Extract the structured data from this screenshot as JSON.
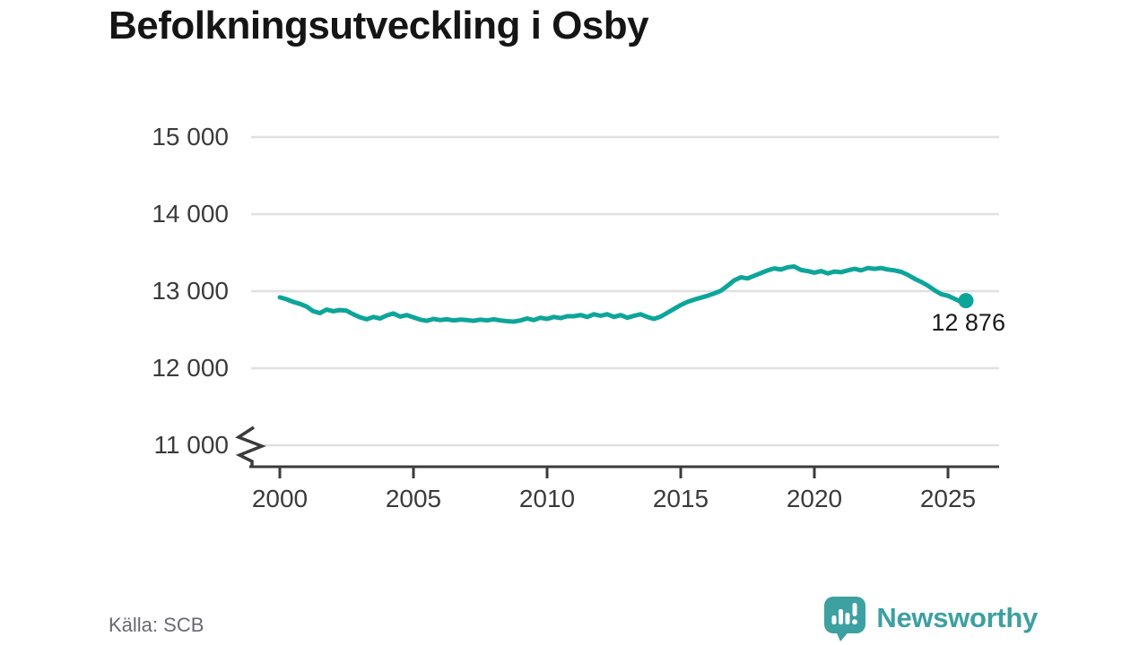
{
  "title": "Befolkningsutveckling i Osby",
  "source": "Källa: SCB",
  "branding": {
    "wordmark": "Newsworthy"
  },
  "colors": {
    "line": "#0da59a",
    "grid": "#e0e0e0",
    "axis": "#3b3b3b",
    "tick_label": "#3b3b3b",
    "title": "#151515",
    "annotation": "#1a1a1a",
    "source_text": "#696971",
    "brand_teal": "#3da0a1"
  },
  "chart_data": {
    "type": "line",
    "title": "Befolkningsutveckling i Osby",
    "xlabel": "",
    "ylabel": "",
    "grid": true,
    "legend": "none",
    "ylim": [
      11000,
      15000
    ],
    "xlim": [
      1998.7,
      2026.9
    ],
    "axis_break_at": 11000,
    "yticks": {
      "values": [
        15000,
        14000,
        13000,
        12000,
        11000
      ],
      "labels": [
        "15 000",
        "14 000",
        "13 000",
        "12 000",
        "11 000"
      ]
    },
    "xticks": {
      "values": [
        2000,
        2005,
        2010,
        2015,
        2020,
        2025
      ],
      "labels": [
        "2000",
        "2005",
        "2010",
        "2015",
        "2020",
        "2025"
      ]
    },
    "x": [
      2000,
      2000.25,
      2000.5,
      2000.75,
      2001,
      2001.25,
      2001.5,
      2001.75,
      2002,
      2002.25,
      2002.5,
      2002.75,
      2003,
      2003.25,
      2003.5,
      2003.75,
      2004,
      2004.25,
      2004.5,
      2004.75,
      2005,
      2005.25,
      2005.5,
      2005.75,
      2006,
      2006.25,
      2006.5,
      2006.75,
      2007,
      2007.25,
      2007.5,
      2007.75,
      2008,
      2008.25,
      2008.5,
      2008.75,
      2009,
      2009.25,
      2009.5,
      2009.75,
      2010,
      2010.25,
      2010.5,
      2010.75,
      2011,
      2011.25,
      2011.5,
      2011.75,
      2012,
      2012.25,
      2012.5,
      2012.75,
      2013,
      2013.25,
      2013.5,
      2013.75,
      2014,
      2014.25,
      2014.5,
      2014.75,
      2015,
      2015.25,
      2015.5,
      2015.75,
      2016,
      2016.25,
      2016.5,
      2016.75,
      2017,
      2017.25,
      2017.5,
      2017.75,
      2018,
      2018.25,
      2018.5,
      2018.75,
      2019,
      2019.25,
      2019.5,
      2019.75,
      2020,
      2020.25,
      2020.5,
      2020.75,
      2021,
      2021.25,
      2021.5,
      2021.75,
      2022,
      2022.25,
      2022.5,
      2022.75,
      2023,
      2023.25,
      2023.5,
      2023.75,
      2024,
      2024.25,
      2024.5,
      2024.75,
      2025,
      2025.25,
      2025.42,
      2025.58,
      2025.67
    ],
    "series": [
      {
        "name": "Befolkning i Osby",
        "values": [
          12920,
          12895,
          12860,
          12835,
          12800,
          12740,
          12715,
          12760,
          12740,
          12755,
          12745,
          12700,
          12660,
          12635,
          12665,
          12645,
          12685,
          12710,
          12670,
          12690,
          12660,
          12630,
          12615,
          12640,
          12625,
          12635,
          12620,
          12630,
          12625,
          12615,
          12630,
          12620,
          12635,
          12620,
          12610,
          12605,
          12620,
          12645,
          12625,
          12655,
          12640,
          12665,
          12650,
          12675,
          12675,
          12690,
          12665,
          12700,
          12680,
          12700,
          12665,
          12690,
          12655,
          12680,
          12700,
          12665,
          12640,
          12670,
          12720,
          12770,
          12820,
          12860,
          12890,
          12915,
          12940,
          12970,
          13005,
          13070,
          13140,
          13180,
          13165,
          13200,
          13235,
          13270,
          13295,
          13280,
          13310,
          13320,
          13275,
          13260,
          13240,
          13260,
          13230,
          13255,
          13245,
          13270,
          13290,
          13270,
          13300,
          13290,
          13300,
          13280,
          13270,
          13250,
          13210,
          13160,
          13120,
          13070,
          13010,
          12960,
          12940,
          12900,
          12872,
          12862,
          12876
        ]
      }
    ],
    "annotation": {
      "text": "12 876",
      "x": 2025.67,
      "value": 12876
    }
  }
}
